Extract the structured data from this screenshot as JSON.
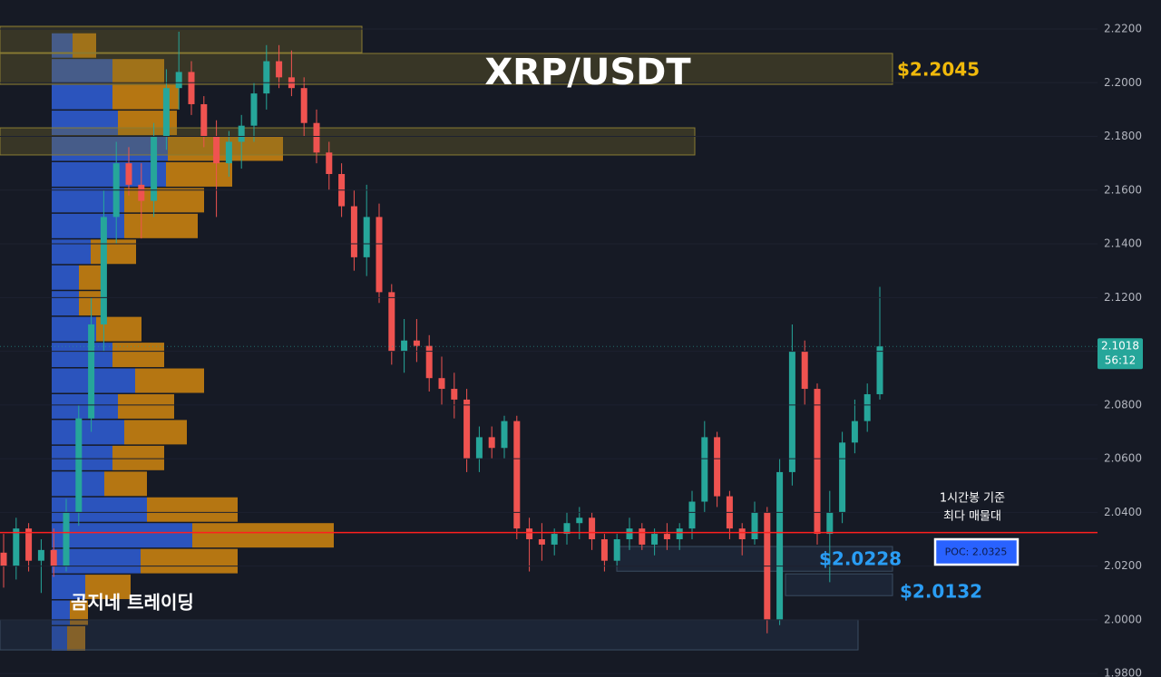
{
  "chart_data": {
    "type": "candlestick",
    "title": "XRP/USDT",
    "ylim": [
      1.9787,
      2.2308
    ],
    "yticks": [
      {
        "value": 2.22,
        "label": "2.2200"
      },
      {
        "value": 2.2,
        "label": "2.2000"
      },
      {
        "value": 2.18,
        "label": "2.1800"
      },
      {
        "value": 2.16,
        "label": "2.1600"
      },
      {
        "value": 2.14,
        "label": "2.1400"
      },
      {
        "value": 2.12,
        "label": "2.1200"
      },
      {
        "value": 2.1,
        "label": "2.1000"
      },
      {
        "value": 2.08,
        "label": "2.0800"
      },
      {
        "value": 2.06,
        "label": "2.0600"
      },
      {
        "value": 2.04,
        "label": "2.0400"
      },
      {
        "value": 2.02,
        "label": "2.0200"
      },
      {
        "value": 2.0,
        "label": "2.0000"
      },
      {
        "value": 1.98,
        "label": "1.9800"
      }
    ],
    "up_color": "#26a69a",
    "down_color": "#ef5350",
    "ohlc": [
      [
        2.025,
        2.032,
        2.012,
        2.02
      ],
      [
        2.02,
        2.038,
        2.015,
        2.034
      ],
      [
        2.034,
        2.036,
        2.018,
        2.022
      ],
      [
        2.022,
        2.03,
        2.01,
        2.026
      ],
      [
        2.026,
        2.034,
        2.016,
        2.02
      ],
      [
        2.02,
        2.045,
        2.018,
        2.04
      ],
      [
        2.04,
        2.08,
        2.035,
        2.075
      ],
      [
        2.075,
        2.12,
        2.07,
        2.11
      ],
      [
        2.11,
        2.16,
        2.1,
        2.15
      ],
      [
        2.15,
        2.178,
        2.14,
        2.17
      ],
      [
        2.17,
        2.176,
        2.158,
        2.162
      ],
      [
        2.162,
        2.17,
        2.142,
        2.156
      ],
      [
        2.156,
        2.185,
        2.15,
        2.18
      ],
      [
        2.18,
        2.205,
        2.175,
        2.198
      ],
      [
        2.198,
        2.219,
        2.19,
        2.204
      ],
      [
        2.204,
        2.208,
        2.188,
        2.192
      ],
      [
        2.192,
        2.195,
        2.176,
        2.18
      ],
      [
        2.18,
        2.186,
        2.15,
        2.17
      ],
      [
        2.17,
        2.182,
        2.165,
        2.178
      ],
      [
        2.178,
        2.188,
        2.168,
        2.184
      ],
      [
        2.184,
        2.2,
        2.178,
        2.196
      ],
      [
        2.196,
        2.214,
        2.19,
        2.208
      ],
      [
        2.208,
        2.214,
        2.198,
        2.202
      ],
      [
        2.202,
        2.212,
        2.195,
        2.198
      ],
      [
        2.198,
        2.202,
        2.18,
        2.185
      ],
      [
        2.185,
        2.19,
        2.17,
        2.174
      ],
      [
        2.174,
        2.178,
        2.16,
        2.166
      ],
      [
        2.166,
        2.17,
        2.15,
        2.154
      ],
      [
        2.154,
        2.16,
        2.13,
        2.135
      ],
      [
        2.135,
        2.162,
        2.128,
        2.15
      ],
      [
        2.15,
        2.155,
        2.118,
        2.122
      ],
      [
        2.122,
        2.125,
        2.095,
        2.1
      ],
      [
        2.1,
        2.112,
        2.092,
        2.104
      ],
      [
        2.104,
        2.112,
        2.096,
        2.102
      ],
      [
        2.102,
        2.106,
        2.085,
        2.09
      ],
      [
        2.09,
        2.098,
        2.08,
        2.086
      ],
      [
        2.086,
        2.092,
        2.075,
        2.082
      ],
      [
        2.082,
        2.086,
        2.055,
        2.06
      ],
      [
        2.06,
        2.072,
        2.055,
        2.068
      ],
      [
        2.068,
        2.072,
        2.06,
        2.064
      ],
      [
        2.064,
        2.076,
        2.06,
        2.074
      ],
      [
        2.074,
        2.076,
        2.03,
        2.034
      ],
      [
        2.034,
        2.038,
        2.018,
        2.03
      ],
      [
        2.03,
        2.036,
        2.022,
        2.028
      ],
      [
        2.028,
        2.034,
        2.024,
        2.032
      ],
      [
        2.032,
        2.04,
        2.028,
        2.036
      ],
      [
        2.036,
        2.042,
        2.03,
        2.038
      ],
      [
        2.038,
        2.04,
        2.026,
        2.03
      ],
      [
        2.03,
        2.032,
        2.018,
        2.022
      ],
      [
        2.022,
        2.032,
        2.02,
        2.03
      ],
      [
        2.03,
        2.038,
        2.026,
        2.034
      ],
      [
        2.034,
        2.036,
        2.026,
        2.028
      ],
      [
        2.028,
        2.034,
        2.024,
        2.032
      ],
      [
        2.032,
        2.036,
        2.026,
        2.03
      ],
      [
        2.03,
        2.036,
        2.026,
        2.034
      ],
      [
        2.034,
        2.048,
        2.03,
        2.044
      ],
      [
        2.044,
        2.074,
        2.04,
        2.068
      ],
      [
        2.068,
        2.07,
        2.042,
        2.046
      ],
      [
        2.046,
        2.048,
        2.03,
        2.034
      ],
      [
        2.034,
        2.036,
        2.024,
        2.03
      ],
      [
        2.03,
        2.044,
        2.028,
        2.04
      ],
      [
        2.04,
        2.042,
        1.995,
        2.0
      ],
      [
        2.0,
        2.06,
        1.998,
        2.055
      ],
      [
        2.055,
        2.11,
        2.05,
        2.1
      ],
      [
        2.1,
        2.104,
        2.08,
        2.086
      ],
      [
        2.086,
        2.088,
        2.028,
        2.032
      ],
      [
        2.032,
        2.048,
        2.014,
        2.04
      ],
      [
        2.04,
        2.07,
        2.036,
        2.066
      ],
      [
        2.066,
        2.082,
        2.062,
        2.074
      ],
      [
        2.074,
        2.088,
        2.07,
        2.084
      ],
      [
        2.084,
        2.124,
        2.082,
        2.1018
      ]
    ],
    "volume_profile": {
      "bins": [
        1.988,
        1.9976,
        2.0072,
        2.0168,
        2.0264,
        2.036,
        2.0456,
        2.0552,
        2.0648,
        2.0744,
        2.084,
        2.0936,
        2.1032,
        2.1128,
        2.1224,
        2.132,
        2.1416,
        2.1512,
        2.1608,
        2.1704,
        2.18,
        2.1896,
        2.1992,
        2.2088,
        2.2184
      ],
      "buy": [
        17,
        20,
        37,
        98,
        155,
        105,
        58,
        67,
        80,
        73,
        92,
        67,
        49,
        30,
        30,
        43,
        80,
        80,
        126,
        128,
        73,
        67,
        67,
        23
      ],
      "sell": [
        20,
        20,
        50,
        107,
        156,
        100,
        47,
        57,
        69,
        62,
        76,
        57,
        50,
        30,
        30,
        50,
        81,
        88,
        73,
        127,
        65,
        73,
        57,
        26
      ],
      "buy_color": "#2f5fd8",
      "sell_color": "#d1870f"
    },
    "zones": [
      {
        "low": 2.2112,
        "high": 2.221
      },
      {
        "low": 2.1994,
        "high": 2.2109,
        "label": "$2.2045"
      },
      {
        "low": 2.1731,
        "high": 2.1832
      },
      {
        "low": 2.0181,
        "high": 2.0273,
        "label": "$2.0228"
      },
      {
        "low": 2.009,
        "high": 2.0171,
        "label": "$2.0132"
      },
      {
        "low": 1.9888,
        "high": 2.0
      }
    ],
    "poc": {
      "value": 2.0325,
      "label": "POC: 2.0325",
      "color": "#ff1f1f"
    },
    "poc_note": [
      "1시간봉 기준",
      "최다 매물대"
    ],
    "last_price": 2.1018,
    "countdown": "56:12",
    "watermark": "곰지네 트레이딩"
  }
}
